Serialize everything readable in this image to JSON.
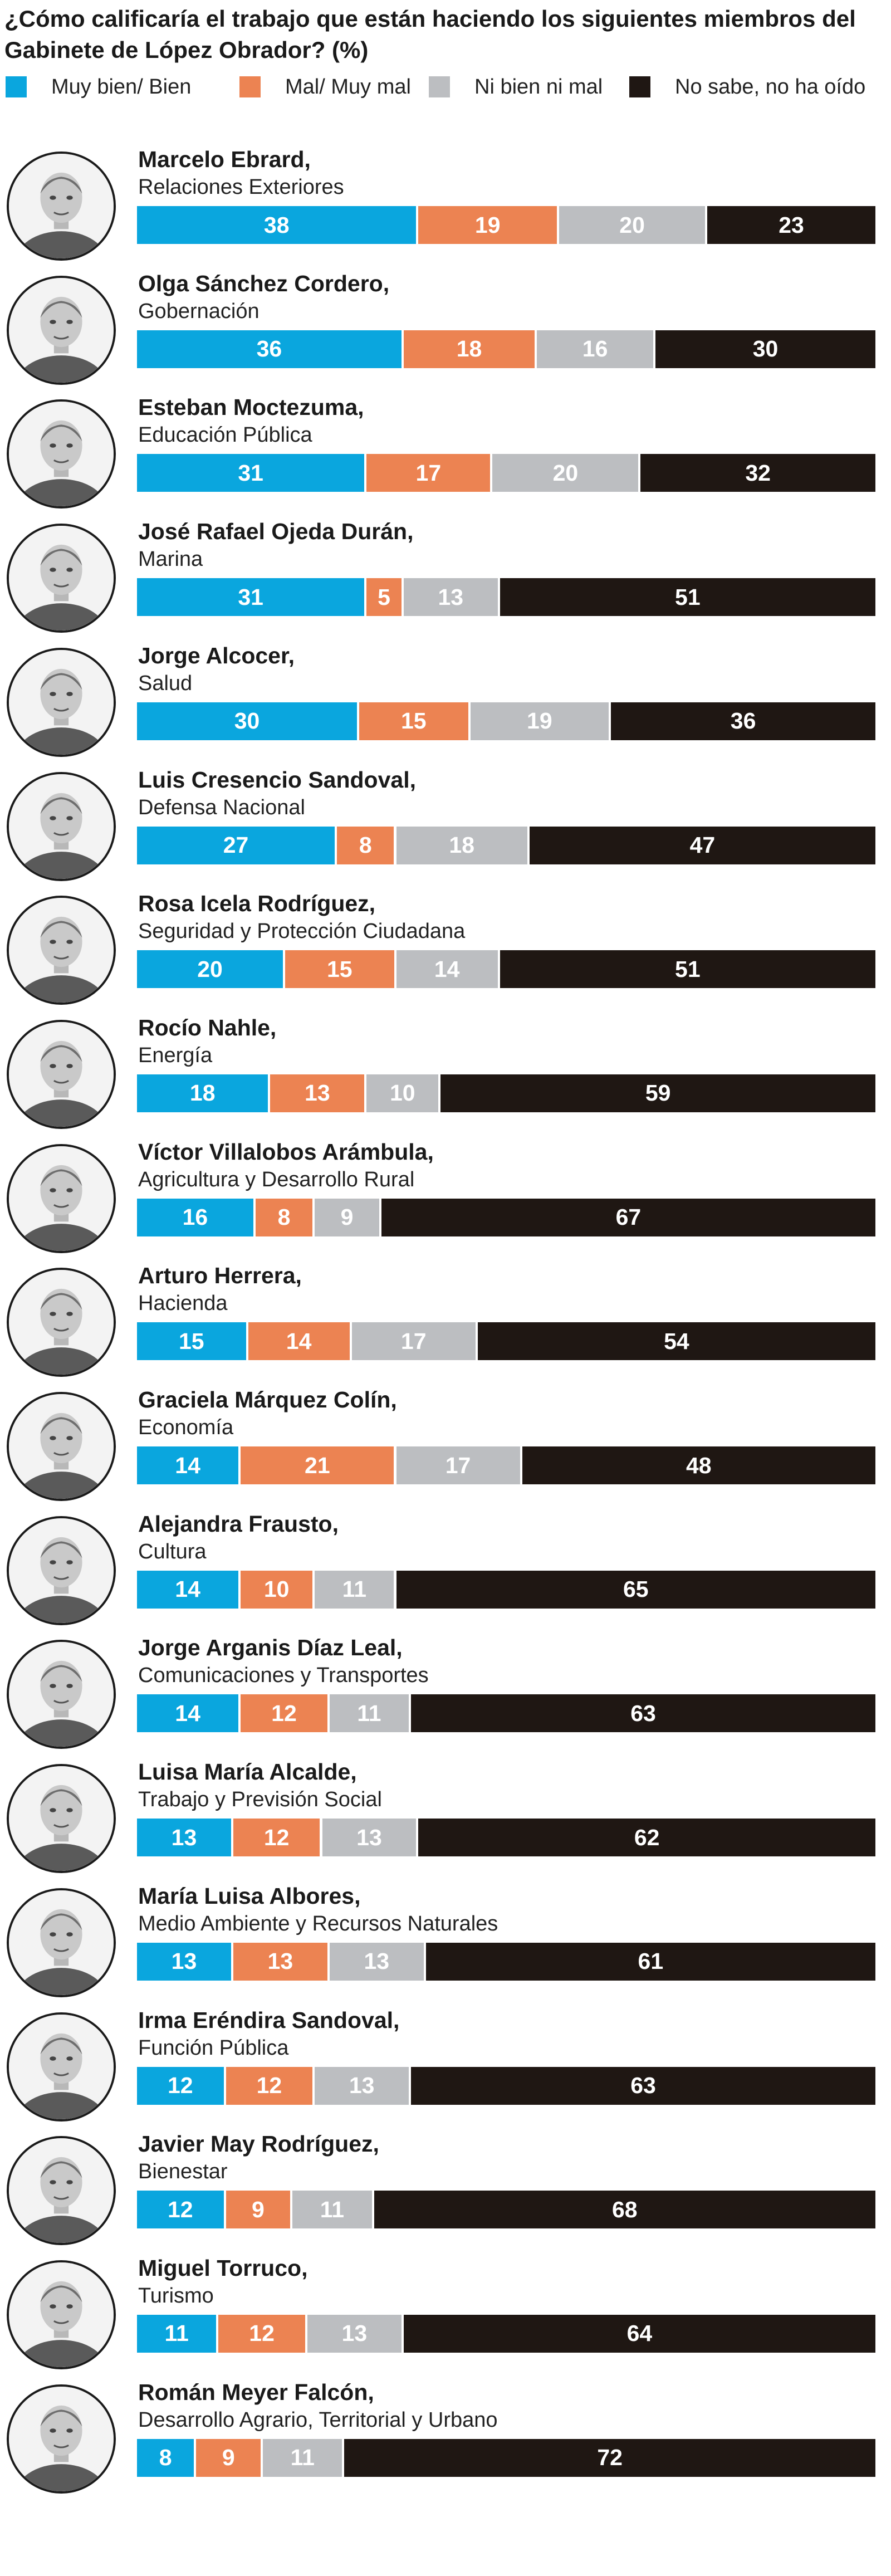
{
  "colors": {
    "muy_bien": "#0aa6de",
    "mal": "#ec8352",
    "ni": "#bcbec1",
    "no_sabe": "#1f1713"
  },
  "chart_data": {
    "type": "bar",
    "orientation": "horizontal",
    "stacked": true,
    "title": "¿Cómo calificaría el trabajo que están haciendo los siguientes miembros del Gabinete de López Obrador? (%)",
    "legend_position": "top",
    "series": [
      {
        "name": "Muy bien/ Bien",
        "color": "#0aa6de",
        "values": [
          38,
          36,
          31,
          31,
          30,
          27,
          20,
          18,
          16,
          15,
          14,
          14,
          14,
          13,
          13,
          12,
          12,
          11,
          8
        ]
      },
      {
        "name": "Mal/ Muy mal",
        "color": "#ec8352",
        "values": [
          19,
          18,
          17,
          5,
          15,
          8,
          15,
          13,
          8,
          14,
          21,
          10,
          12,
          12,
          13,
          12,
          9,
          12,
          9
        ]
      },
      {
        "name": "Ni bien ni mal",
        "color": "#bcbec1",
        "values": [
          20,
          16,
          20,
          13,
          19,
          18,
          14,
          10,
          9,
          17,
          17,
          11,
          11,
          13,
          13,
          13,
          11,
          13,
          11
        ]
      },
      {
        "name": "No sabe, no ha oído",
        "color": "#1f1713",
        "values": [
          23,
          30,
          32,
          51,
          36,
          47,
          51,
          59,
          67,
          54,
          48,
          65,
          63,
          62,
          61,
          63,
          68,
          64,
          72
        ]
      }
    ],
    "members": [
      {
        "name": "Marcelo Ebrard,",
        "ministry": "Relaciones Exteriores"
      },
      {
        "name": "Olga Sánchez Cordero,",
        "ministry": "Gobernación"
      },
      {
        "name": "Esteban Moctezuma,",
        "ministry": "Educación Pública"
      },
      {
        "name": "José Rafael Ojeda Durán,",
        "ministry": "Marina"
      },
      {
        "name": "Jorge Alcocer,",
        "ministry": "Salud"
      },
      {
        "name": "Luis Cresencio Sandoval,",
        "ministry": "Defensa Nacional"
      },
      {
        "name": "Rosa Icela Rodríguez,",
        "ministry": "Seguridad y Protección Ciudadana"
      },
      {
        "name": "Rocío Nahle,",
        "ministry": "Energía"
      },
      {
        "name": "Víctor Villalobos Arámbula,",
        "ministry": "Agricultura y Desarrollo Rural"
      },
      {
        "name": "Arturo Herrera,",
        "ministry": "Hacienda"
      },
      {
        "name": "Graciela Márquez Colín,",
        "ministry": "Economía"
      },
      {
        "name": "Alejandra Frausto,",
        "ministry": "Cultura"
      },
      {
        "name": "Jorge Arganis Díaz Leal,",
        "ministry": "Comunicaciones y Transportes"
      },
      {
        "name": "Luisa María Alcalde,",
        "ministry": "Trabajo y Previsión Social"
      },
      {
        "name": "María Luisa Albores,",
        "ministry": "Medio Ambiente y Recursos Naturales"
      },
      {
        "name": "Irma Eréndira Sandoval,",
        "ministry": "Función Pública"
      },
      {
        "name": "Javier May Rodríguez,",
        "ministry": "Bienestar"
      },
      {
        "name": "Miguel Torruco,",
        "ministry": "Turismo"
      },
      {
        "name": "Román Meyer Falcón,",
        "ministry": "Desarrollo Agrario, Territorial y Urbano"
      }
    ]
  }
}
